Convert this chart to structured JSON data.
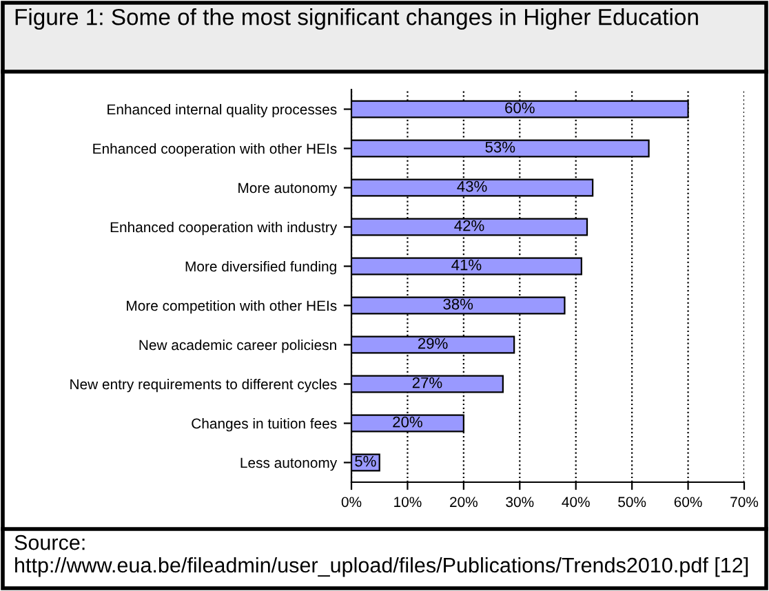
{
  "chart_data": {
    "type": "bar",
    "orientation": "horizontal",
    "title": "Figure 1: Some of the most significant changes in Higher Education",
    "categories": [
      "Enhanced internal quality processes",
      "Enhanced cooperation with other HEIs",
      "More autonomy",
      "Enhanced cooperation with industry",
      "More diversified funding",
      "More competition with other HEIs",
      "New academic career policiesn",
      "New entry requirements to different cycles",
      "Changes in tuition fees",
      "Less autonomy"
    ],
    "values": [
      60,
      53,
      43,
      42,
      41,
      38,
      29,
      27,
      20,
      5
    ],
    "value_labels": [
      "60%",
      "53%",
      "43%",
      "42%",
      "41%",
      "38%",
      "29%",
      "27%",
      "20%",
      "5%"
    ],
    "color": "#9999ff",
    "xlim": [
      0,
      70
    ],
    "xticks": [
      {
        "value": 0,
        "label": "0%"
      },
      {
        "value": 10,
        "label": "10%"
      },
      {
        "value": 20,
        "label": "20%"
      },
      {
        "value": 30,
        "label": "30%"
      },
      {
        "value": 40,
        "label": "40%"
      },
      {
        "value": 50,
        "label": "50%"
      },
      {
        "value": 60,
        "label": "60%"
      },
      {
        "value": 70,
        "label": "70%"
      }
    ],
    "grid": "x",
    "legend": false,
    "annotations": [
      "Source: http://www.eua.be/fileadmin/user_upload/files/Publications/Trends2010.pdf [12]"
    ]
  }
}
